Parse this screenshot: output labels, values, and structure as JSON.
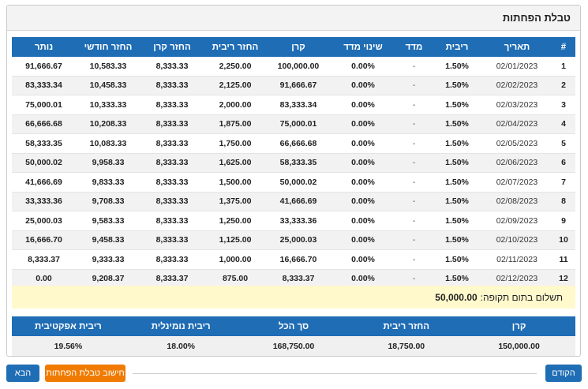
{
  "card": {
    "title": "טבלת הפחתות"
  },
  "schedule": {
    "headers": [
      "#",
      "תאריך",
      "ריבית",
      "מדד",
      "שינוי מדד",
      "קרן",
      "החזר ריבית",
      "החזר קרן",
      "החזר חודשי",
      "נותר"
    ],
    "rows": [
      [
        "1",
        "02/01/2023",
        "1.50%",
        "-",
        "0.00%",
        "100,000.00",
        "2,250.00",
        "8,333.33",
        "10,583.33",
        "91,666.67"
      ],
      [
        "2",
        "02/02/2023",
        "1.50%",
        "-",
        "0.00%",
        "91,666.67",
        "2,125.00",
        "8,333.33",
        "10,458.33",
        "83,333.34"
      ],
      [
        "3",
        "02/03/2023",
        "1.50%",
        "-",
        "0.00%",
        "83,333.34",
        "2,000.00",
        "8,333.33",
        "10,333.33",
        "75,000.01"
      ],
      [
        "4",
        "02/04/2023",
        "1.50%",
        "-",
        "0.00%",
        "75,000.01",
        "1,875.00",
        "8,333.33",
        "10,208.33",
        "66,666.68"
      ],
      [
        "5",
        "02/05/2023",
        "1.50%",
        "-",
        "0.00%",
        "66,666.68",
        "1,750.00",
        "8,333.33",
        "10,083.33",
        "58,333.35"
      ],
      [
        "6",
        "02/06/2023",
        "1.50%",
        "-",
        "0.00%",
        "58,333.35",
        "1,625.00",
        "8,333.33",
        "9,958.33",
        "50,000.02"
      ],
      [
        "7",
        "02/07/2023",
        "1.50%",
        "-",
        "0.00%",
        "50,000.02",
        "1,500.00",
        "8,333.33",
        "9,833.33",
        "41,666.69"
      ],
      [
        "8",
        "02/08/2023",
        "1.50%",
        "-",
        "0.00%",
        "41,666.69",
        "1,375.00",
        "8,333.33",
        "9,708.33",
        "33,333.36"
      ],
      [
        "9",
        "02/09/2023",
        "1.50%",
        "-",
        "0.00%",
        "33,333.36",
        "1,250.00",
        "8,333.33",
        "9,583.33",
        "25,000.03"
      ],
      [
        "10",
        "02/10/2023",
        "1.50%",
        "-",
        "0.00%",
        "25,000.03",
        "1,125.00",
        "8,333.33",
        "9,458.33",
        "16,666.70"
      ],
      [
        "11",
        "02/11/2023",
        "1.50%",
        "-",
        "0.00%",
        "16,666.70",
        "1,000.00",
        "8,333.33",
        "9,333.33",
        "8,333.37"
      ],
      [
        "12",
        "02/12/2023",
        "1.50%",
        "-",
        "0.00%",
        "8,333.37",
        "875.00",
        "8,333.37",
        "9,208.37",
        "0.00"
      ]
    ]
  },
  "final_payment": {
    "label": "תשלום בתום תקופה:",
    "value": "50,000.00"
  },
  "summary": {
    "headers": [
      "קרן",
      "החזר ריבית",
      "סך הכל",
      "ריבית נומינלית",
      "ריבית אפקטיבית"
    ],
    "values": [
      "150,000.00",
      "18,750.00",
      "168,750.00",
      "18.00%",
      "19.56%"
    ]
  },
  "footer": {
    "prev_label": "הקודם",
    "calc_label": "חישוב טבלת הפחתות",
    "next_label": "הבא"
  },
  "colors": {
    "header_blue": "#1f6db5",
    "calc_orange": "#f07b00",
    "final_row_bg": "#fff9cc"
  }
}
